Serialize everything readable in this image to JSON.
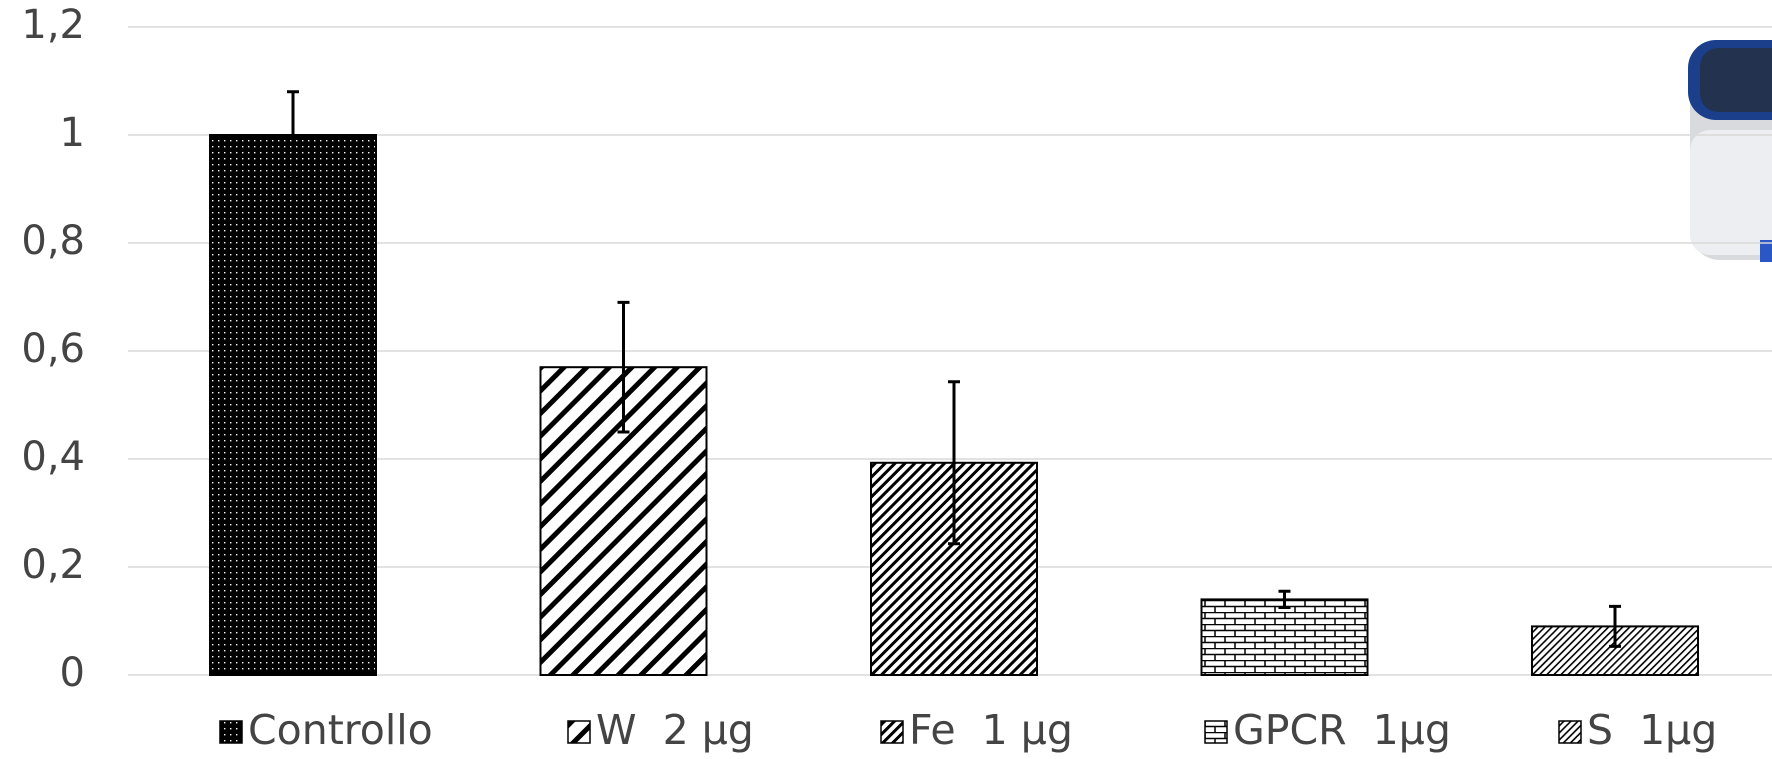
{
  "chart_data": {
    "type": "bar",
    "series": [
      {
        "name": "Controllo",
        "color": "#000000",
        "values": [
          1.0
        ],
        "errors": [
          0.08
        ]
      },
      {
        "name": "W  2 µg",
        "color": "#000000",
        "values": [
          0.57
        ],
        "errors": [
          0.12
        ]
      },
      {
        "name": "Fe  1 µg",
        "color": "#000000",
        "values": [
          0.393
        ],
        "errors": [
          0.15
        ]
      },
      {
        "name": "GPCR  1µg",
        "color": "#000000",
        "values": [
          0.14
        ],
        "errors": [
          0.015
        ]
      },
      {
        "name": "S  1µg",
        "color": "#000000",
        "values": [
          0.09
        ],
        "errors": [
          0.037
        ]
      }
    ],
    "ylim": [
      0,
      1.2
    ],
    "yticks": [
      0,
      {
        "value": 0.2,
        "label": "0,2"
      },
      {
        "value": 0.4,
        "label": "0,4"
      },
      {
        "value": 0.6,
        "label": "0,6"
      },
      {
        "value": 0.8,
        "label": "0,8"
      },
      1,
      {
        "value": 1.2,
        "label": "1,2"
      }
    ],
    "grid": true
  }
}
